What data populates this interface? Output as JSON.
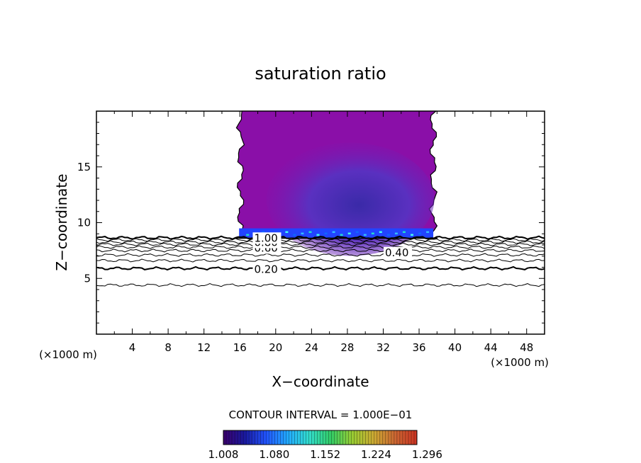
{
  "chart_data": {
    "type": "contour",
    "title": "saturation ratio",
    "xlabel": "X−coordinate",
    "ylabel": "Z−coordinate",
    "x_unit_left": "(×1000 m)",
    "x_unit_right": "(×1000 m)",
    "xlim": [
      0,
      50
    ],
    "ylim": [
      0,
      20
    ],
    "x_ticks": [
      4,
      8,
      12,
      16,
      20,
      24,
      28,
      32,
      36,
      40,
      44,
      48
    ],
    "y_ticks": [
      5,
      10,
      15
    ],
    "x_tick_labels": [
      "4",
      "8",
      "12",
      "16",
      "20",
      "24",
      "28",
      "32",
      "36",
      "40",
      "44",
      "48"
    ],
    "y_tick_labels": [
      "5",
      "10",
      "15"
    ],
    "grid": false,
    "contour_interval_text": "CONTOUR INTERVAL = 1.000E−01",
    "contour_lines": [
      {
        "level": 0.1,
        "z": 4.4
      },
      {
        "level": 0.2,
        "z": 5.9
      },
      {
        "level": 0.3,
        "z": 6.6
      },
      {
        "level": 0.4,
        "z": 7.1
      },
      {
        "level": 0.5,
        "z": 7.5
      },
      {
        "level": 0.6,
        "z": 7.8
      },
      {
        "level": 0.7,
        "z": 8.05
      },
      {
        "level": 0.8,
        "z": 8.25
      },
      {
        "level": 0.9,
        "z": 8.45
      },
      {
        "level": 1.0,
        "z": 8.65
      }
    ],
    "contour_labels": [
      {
        "text": "0.20",
        "x": 17.6,
        "z": 5.5
      },
      {
        "text": "0.40",
        "x": 32.2,
        "z": 7.0
      },
      {
        "text": "0.60",
        "x": 17.6,
        "z": 7.4
      },
      {
        "text": "0.80",
        "x": 17.6,
        "z": 7.9
      },
      {
        "text": "1.00",
        "x": 17.6,
        "z": 8.3
      }
    ],
    "supersaturated_region": {
      "x_range": [
        15.6,
        37.9
      ],
      "z_range": [
        8.6,
        20
      ],
      "top_value_color": "#8a0fa8",
      "core_value_color": "#5a2fc0",
      "base_value_color": "#2244ff"
    },
    "colorbar": {
      "ticks": [
        1.008,
        1.08,
        1.152,
        1.224,
        1.296
      ],
      "tick_labels": [
        "1.008",
        "1.080",
        "1.152",
        "1.224",
        "1.296"
      ],
      "colors": [
        "#3a006a",
        "#1a1aa0",
        "#2255ff",
        "#22aaff",
        "#33ddcc",
        "#33cc66",
        "#99cc33",
        "#ccaa33",
        "#cc6633",
        "#cc3322"
      ]
    }
  }
}
